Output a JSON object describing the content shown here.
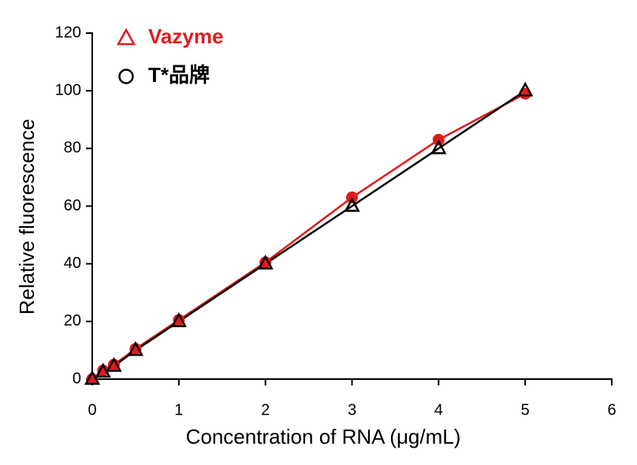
{
  "chart_data": {
    "type": "line",
    "x_label": "Concentration of RNA (μg/mL)",
    "y_label": "Relative fluorescence",
    "xlim": [
      0,
      6
    ],
    "xticks": [
      0,
      1,
      2,
      3,
      4,
      5,
      6
    ],
    "ylim": [
      0,
      120
    ],
    "yticks": [
      0,
      20,
      40,
      60,
      80,
      100,
      120
    ],
    "series": [
      {
        "name": "Vazyme",
        "color": "#e31a1c",
        "marker": "filled-circle",
        "x": [
          0,
          0.125,
          0.25,
          0.5,
          1,
          2,
          3,
          4,
          5
        ],
        "values": [
          0,
          3,
          5,
          10.5,
          20.5,
          40.5,
          63,
          83,
          99
        ]
      },
      {
        "name": "T*品牌",
        "color": "#000000",
        "marker": "open-triangle",
        "x": [
          0,
          0.125,
          0.25,
          0.5,
          1,
          2,
          3,
          4,
          5
        ],
        "values": [
          0,
          2.5,
          4.5,
          10,
          20,
          40,
          60,
          80,
          100
        ]
      }
    ]
  }
}
